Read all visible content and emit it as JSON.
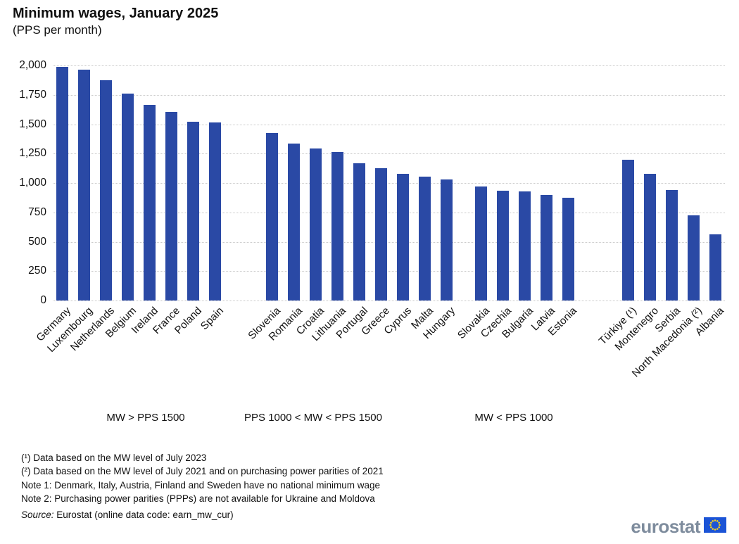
{
  "header": {
    "title": "Minimum wages, January 2025",
    "subtitle": "(PPS per month)"
  },
  "chart_data": {
    "type": "bar",
    "title": "Minimum wages, January 2025",
    "ylabel": "PPS per month",
    "ylim": [
      0,
      2000
    ],
    "yticks": [
      0,
      250,
      500,
      750,
      1000,
      1250,
      1500,
      1750,
      2000
    ],
    "grid": "horizontal-dotted",
    "legend_position": "none",
    "groups": [
      {
        "label": "MW > PPS 1500",
        "categories": [
          "Germany",
          "Luxembourg",
          "Netherlands",
          "Belgium",
          "Ireland",
          "France",
          "Poland",
          "Spain"
        ],
        "values": [
          1990,
          1965,
          1875,
          1760,
          1665,
          1605,
          1520,
          1515
        ]
      },
      {
        "label": "PPS 1000 < MW < PPS 1500",
        "categories": [
          "Slovenia",
          "Romania",
          "Croatia",
          "Lithuania",
          "Portugal",
          "Greece",
          "Cyprus",
          "Malta",
          "Hungary"
        ],
        "values": [
          1425,
          1335,
          1295,
          1265,
          1170,
          1125,
          1075,
          1055,
          1030
        ]
      },
      {
        "label": "MW < PPS 1000",
        "categories": [
          "Slovakia",
          "Czechia",
          "Bulgaria",
          "Latvia",
          "Estonia"
        ],
        "values": [
          970,
          935,
          930,
          900,
          875
        ]
      },
      {
        "label": "",
        "categories": [
          "Türkiye (¹)",
          "Montenegro",
          "Serbia",
          "North Macedonia (²)",
          "Albania"
        ],
        "values": [
          1195,
          1075,
          940,
          725,
          560
        ]
      }
    ]
  },
  "colors": {
    "bar": "#2a49a5",
    "grid": "#c9c9c9",
    "logo_text": "#7e8c9d",
    "flag_blue": "#1b54d6",
    "star_yellow": "#ffd617"
  },
  "footnotes": [
    "(¹) Data based on the MW level of July 2023",
    "(²) Data based on the MW level of July 2021 and on purchasing power parities of 2021",
    "Note 1: Denmark, Italy, Austria, Finland and Sweden have no national minimum wage",
    "Note 2: Purchasing power parities (PPPs) are not available for Ukraine and Moldova"
  ],
  "source": {
    "prefix": "Source:",
    "text": " Eurostat (online data code: earn_mw_cur)"
  },
  "logo": {
    "text": "eurostat"
  }
}
